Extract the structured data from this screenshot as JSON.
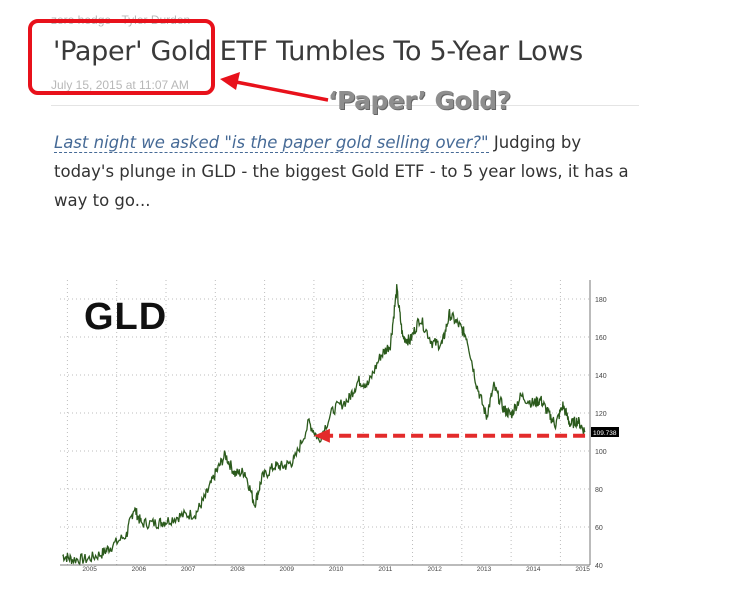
{
  "article": {
    "byline": "zero hedge - Tyler Durden",
    "title": "'Paper' Gold ETF Tumbles To 5-Year Lows",
    "timestamp": "July 15, 2015 at 11:07 AM",
    "link_text": "Last night we asked \"is the paper gold selling over?\"",
    "body_text": " Judging by today's plunge in GLD - the biggest Gold ETF - to 5 year lows, it has a way to go..."
  },
  "annotation": {
    "text": "‘Paper’ Gold?",
    "color": "#e8111b"
  },
  "chart_data": {
    "type": "line",
    "title": "GLD",
    "x": [
      "2005",
      "2006",
      "2007",
      "2008",
      "2009",
      "2010",
      "2011",
      "2012",
      "2013",
      "2014",
      "2015"
    ],
    "ylim": [
      40,
      190
    ],
    "yticks": [
      40,
      60,
      80,
      100,
      120,
      140,
      160,
      180
    ],
    "last_value_label": "109.738",
    "series": [
      {
        "points": [
          [
            2004.9,
            45
          ],
          [
            2005.1,
            43
          ],
          [
            2005.4,
            43
          ],
          [
            2005.7,
            46
          ],
          [
            2005.9,
            50
          ],
          [
            2006.2,
            56
          ],
          [
            2006.35,
            70
          ],
          [
            2006.5,
            62
          ],
          [
            2006.8,
            62
          ],
          [
            2007.0,
            63
          ],
          [
            2007.3,
            66
          ],
          [
            2007.6,
            67
          ],
          [
            2007.8,
            76
          ],
          [
            2008.0,
            88
          ],
          [
            2008.2,
            98
          ],
          [
            2008.4,
            88
          ],
          [
            2008.6,
            89
          ],
          [
            2008.8,
            72
          ],
          [
            2008.95,
            86
          ],
          [
            2009.2,
            92
          ],
          [
            2009.4,
            92
          ],
          [
            2009.6,
            95
          ],
          [
            2009.9,
            115
          ],
          [
            2010.1,
            106
          ],
          [
            2010.4,
            122
          ],
          [
            2010.7,
            127
          ],
          [
            2010.9,
            137
          ],
          [
            2011.1,
            135
          ],
          [
            2011.35,
            150
          ],
          [
            2011.55,
            156
          ],
          [
            2011.68,
            185
          ],
          [
            2011.8,
            160
          ],
          [
            2011.95,
            158
          ],
          [
            2012.15,
            170
          ],
          [
            2012.4,
            157
          ],
          [
            2012.6,
            156
          ],
          [
            2012.75,
            172
          ],
          [
            2012.95,
            166
          ],
          [
            2013.1,
            160
          ],
          [
            2013.3,
            135
          ],
          [
            2013.5,
            118
          ],
          [
            2013.65,
            134
          ],
          [
            2013.85,
            122
          ],
          [
            2014.0,
            119
          ],
          [
            2014.2,
            129
          ],
          [
            2014.45,
            125
          ],
          [
            2014.6,
            127
          ],
          [
            2014.75,
            120
          ],
          [
            2014.9,
            114
          ],
          [
            2015.05,
            124
          ],
          [
            2015.2,
            114
          ],
          [
            2015.35,
            116
          ],
          [
            2015.5,
            110
          ]
        ],
        "color": "#2b5a1c"
      }
    ],
    "support_line": {
      "y": 108,
      "x_from": 2010.0,
      "x_to": 2015.5,
      "color": "#e32b2b"
    },
    "xlim": [
      2004.85,
      2015.6
    ]
  }
}
